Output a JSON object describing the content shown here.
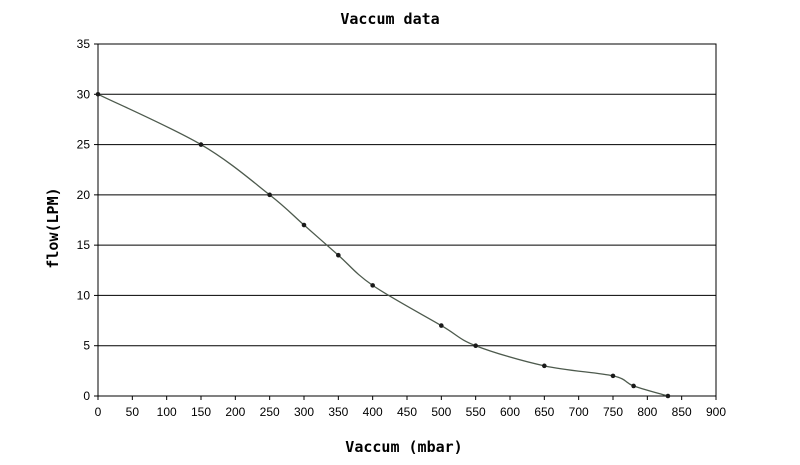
{
  "chart_data": {
    "type": "line",
    "title": "Vaccum data",
    "xlabel": "Vaccum (mbar)",
    "ylabel": "flow(LPM)",
    "xlim": [
      0,
      900
    ],
    "ylim": [
      0,
      35
    ],
    "xticks": [
      0,
      50,
      100,
      150,
      200,
      250,
      300,
      350,
      400,
      450,
      500,
      550,
      600,
      650,
      700,
      750,
      800,
      850,
      900
    ],
    "yticks": [
      0,
      5,
      10,
      15,
      20,
      25,
      30,
      35
    ],
    "grid": "horizontal",
    "legend": "none",
    "series": [
      {
        "x": [
          0,
          150,
          250,
          300,
          350,
          400,
          500,
          550,
          650,
          750,
          780,
          830
        ],
        "y": [
          30,
          25,
          20,
          17,
          14,
          11,
          7,
          5,
          3,
          2,
          1,
          0
        ]
      }
    ],
    "colors": {
      "line": "#4d5a4d",
      "marker": "#1a1a1a",
      "grid": "#000000",
      "frame": "#000000"
    }
  }
}
